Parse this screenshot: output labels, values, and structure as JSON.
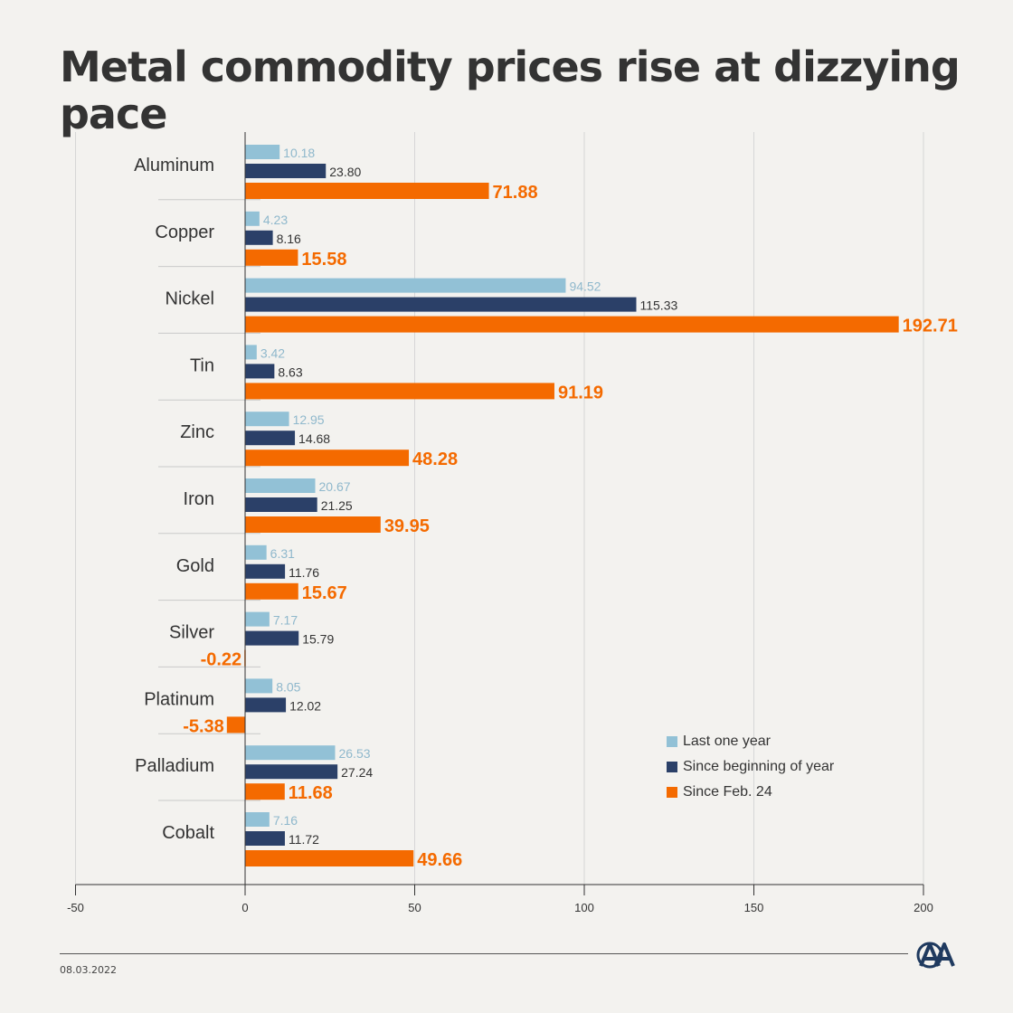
{
  "title": "Metal commodity prices rise at dizzying pace",
  "date": "08.03.2022",
  "colors": {
    "last_year": "#92c1d6",
    "since_beginning": "#2b4068",
    "since_feb": "#f46a00",
    "text": "#333333"
  },
  "legend": {
    "items": [
      {
        "label": "Last one year",
        "color": "#92c1d6"
      },
      {
        "label": "Since beginning of year",
        "color": "#2b4068"
      },
      {
        "label": "Since Feb. 24",
        "color": "#f46a00"
      }
    ]
  },
  "logo": "anadolu-agency-logo",
  "chart_data": {
    "type": "bar",
    "orientation": "horizontal",
    "title": "Metal commodity prices rise at dizzying pace",
    "categories": [
      "Aluminum",
      "Copper",
      "Nickel",
      "Tin",
      "Zinc",
      "Iron",
      "Gold",
      "Silver",
      "Platinum",
      "Palladium",
      "Cobalt"
    ],
    "series": [
      {
        "name": "Last one year",
        "values": [
          10.18,
          4.23,
          94.52,
          3.42,
          12.95,
          20.67,
          6.31,
          7.17,
          8.05,
          26.53,
          7.16
        ],
        "labels": [
          "10.18",
          "4.23",
          "94.52",
          "3.42",
          "12.95",
          "20.67",
          "6.31",
          "7.17",
          "8.05",
          "26.53",
          "7.16"
        ]
      },
      {
        "name": "Since beginning of year",
        "values": [
          23.8,
          8.16,
          115.33,
          8.63,
          14.68,
          21.25,
          11.76,
          15.79,
          12.02,
          27.24,
          11.72
        ],
        "labels": [
          "23.80",
          "8.16",
          "115.33",
          "8.63",
          "14.68",
          "21.25",
          "11.76",
          "15.79",
          "12.02",
          "27.24",
          "11.72"
        ]
      },
      {
        "name": "Since Feb. 24",
        "values": [
          71.88,
          15.58,
          192.71,
          91.19,
          48.28,
          39.95,
          15.67,
          -0.22,
          -5.38,
          11.68,
          49.66
        ],
        "labels": [
          "71.88",
          "15.58",
          "192.71",
          "91.19",
          "48.28",
          "39.95",
          "15.67",
          "-0.22",
          "-5.38",
          "11.68",
          "49.66"
        ]
      }
    ],
    "xlim": [
      -50,
      200
    ],
    "xticks": [
      -50,
      0,
      50,
      100,
      150,
      200
    ],
    "xtick_labels": [
      "-50",
      "0",
      "50",
      "100",
      "150",
      "200"
    ],
    "grid": true,
    "legend_position": "bottom-right"
  }
}
